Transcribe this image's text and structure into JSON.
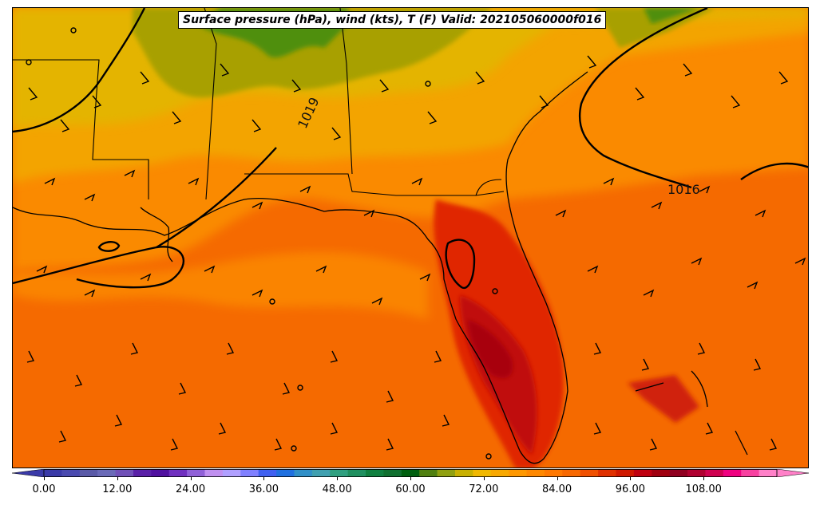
{
  "title": "Surface pressure (hPa), wind (kts), T (F) Valid: 202105060000f016",
  "contour_labels": [
    "1019",
    "1016"
  ],
  "colorbar": {
    "ticks": [
      "0.00",
      "12.00",
      "24.00",
      "36.00",
      "48.00",
      "60.00",
      "72.00",
      "84.00",
      "96.00",
      "108.00"
    ],
    "colors": [
      "#3a3aa8",
      "#4a4ab0",
      "#5a5aa8",
      "#6a6ab8",
      "#7050b8",
      "#5a20a8",
      "#5010a0",
      "#7030c0",
      "#9060d8",
      "#c090f0",
      "#b0a0ff",
      "#8080ff",
      "#4060f0",
      "#2070e0",
      "#3090c8",
      "#40a0b0",
      "#30a080",
      "#209060",
      "#108040",
      "#107030",
      "#006010",
      "#508010",
      "#90a010",
      "#c8b000",
      "#f0b800",
      "#f8a800",
      "#ff9800",
      "#ff8800",
      "#ff7800",
      "#f86800",
      "#f05000",
      "#e03000",
      "#d01800",
      "#c00010",
      "#a00010",
      "#900020",
      "#b00030",
      "#d00050",
      "#f00080",
      "#f840a0",
      "#ff80c8"
    ]
  }
}
